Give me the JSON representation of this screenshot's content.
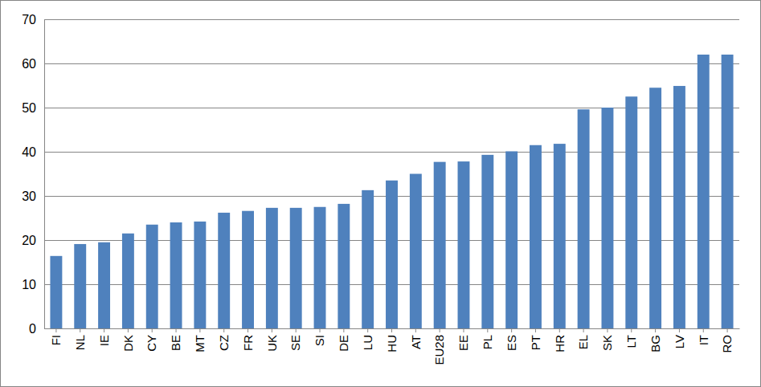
{
  "chart_data": {
    "type": "bar",
    "categories": [
      "FI",
      "NL",
      "IE",
      "DK",
      "CY",
      "BE",
      "MT",
      "CZ",
      "FR",
      "UK",
      "SE",
      "SI",
      "DE",
      "LU",
      "HU",
      "AT",
      "EU28",
      "EE",
      "PL",
      "ES",
      "PT",
      "HR",
      "EL",
      "SK",
      "LT",
      "BG",
      "LV",
      "IT",
      "RO"
    ],
    "values": [
      16.4,
      19.1,
      19.5,
      21.5,
      23.5,
      24.0,
      24.2,
      26.2,
      26.6,
      27.3,
      27.3,
      27.5,
      28.2,
      31.3,
      33.5,
      35.0,
      37.7,
      37.8,
      39.3,
      40.1,
      41.5,
      41.8,
      49.6,
      50.0,
      52.5,
      54.5,
      54.9,
      62.0,
      62.0
    ],
    "color": "#4f81bd",
    "ylim": [
      0,
      70
    ],
    "yticks": [
      0,
      10,
      20,
      30,
      40,
      50,
      60,
      70
    ],
    "grid": true
  }
}
